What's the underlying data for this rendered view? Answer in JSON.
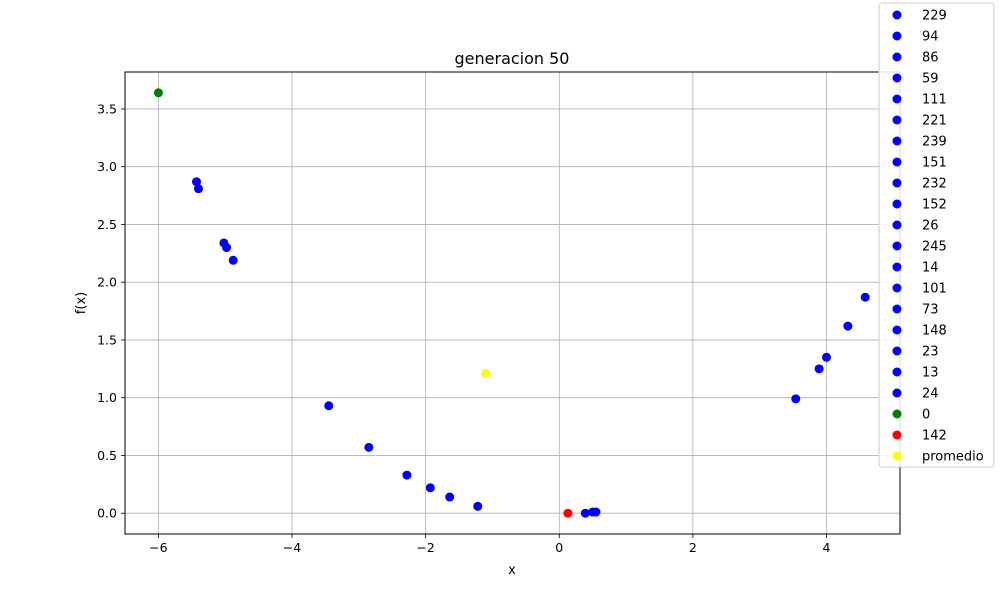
{
  "chart_data": {
    "type": "scatter",
    "title": "generacion 50",
    "xlabel": "x",
    "ylabel": "f(x)",
    "xlim": [
      -6.5,
      5.1
    ],
    "ylim": [
      -0.18,
      3.82
    ],
    "xticks": [
      -6,
      -4,
      -2,
      0,
      2,
      4
    ],
    "xtick_labels": [
      "−6",
      "−4",
      "−2",
      "0",
      "2",
      "4"
    ],
    "yticks": [
      0.0,
      0.5,
      1.0,
      1.5,
      2.0,
      2.5,
      3.0,
      3.5
    ],
    "ytick_labels": [
      "0.0",
      "0.5",
      "1.0",
      "1.5",
      "2.0",
      "2.5",
      "3.0",
      "3.5"
    ],
    "grid": true,
    "legend_position": "outside-top-right",
    "series": [
      {
        "name": "229",
        "color": "#0000ff",
        "points": [
          {
            "x": -5.43,
            "y": 2.87
          }
        ]
      },
      {
        "name": "94",
        "color": "#0000ff",
        "points": [
          {
            "x": -5.4,
            "y": 2.81
          }
        ]
      },
      {
        "name": "86",
        "color": "#0000ff",
        "points": [
          {
            "x": -5.02,
            "y": 2.34
          }
        ]
      },
      {
        "name": "59",
        "color": "#0000ff",
        "points": [
          {
            "x": -4.98,
            "y": 2.3
          }
        ]
      },
      {
        "name": "111",
        "color": "#0000ff",
        "points": [
          {
            "x": -4.88,
            "y": 2.19
          }
        ]
      },
      {
        "name": "221",
        "color": "#0000ff",
        "points": [
          {
            "x": -3.45,
            "y": 0.93
          }
        ]
      },
      {
        "name": "239",
        "color": "#0000ff",
        "points": [
          {
            "x": -2.85,
            "y": 0.57
          }
        ]
      },
      {
        "name": "151",
        "color": "#0000ff",
        "points": [
          {
            "x": -2.28,
            "y": 0.33
          }
        ]
      },
      {
        "name": "232",
        "color": "#0000ff",
        "points": [
          {
            "x": -1.93,
            "y": 0.22
          }
        ]
      },
      {
        "name": "152",
        "color": "#0000ff",
        "points": [
          {
            "x": -1.64,
            "y": 0.14
          }
        ]
      },
      {
        "name": "26",
        "color": "#0000ff",
        "points": [
          {
            "x": -1.22,
            "y": 0.06
          }
        ]
      },
      {
        "name": "245",
        "color": "#0000ff",
        "points": [
          {
            "x": 0.39,
            "y": 0.0
          }
        ]
      },
      {
        "name": "14",
        "color": "#0000ff",
        "points": [
          {
            "x": 0.5,
            "y": 0.01
          }
        ]
      },
      {
        "name": "101",
        "color": "#0000ff",
        "points": [
          {
            "x": 0.55,
            "y": 0.01
          }
        ]
      },
      {
        "name": "73",
        "color": "#0000ff",
        "points": [
          {
            "x": 3.54,
            "y": 0.99
          }
        ]
      },
      {
        "name": "148",
        "color": "#0000ff",
        "points": [
          {
            "x": 3.89,
            "y": 1.25
          }
        ]
      },
      {
        "name": "23",
        "color": "#0000ff",
        "points": [
          {
            "x": 4.0,
            "y": 1.35
          }
        ]
      },
      {
        "name": "13",
        "color": "#0000ff",
        "points": [
          {
            "x": 4.32,
            "y": 1.62
          }
        ]
      },
      {
        "name": "24",
        "color": "#0000ff",
        "points": [
          {
            "x": 4.58,
            "y": 1.87
          }
        ]
      },
      {
        "name": "0",
        "color": "#008000",
        "points": [
          {
            "x": -6.0,
            "y": 3.64
          }
        ]
      },
      {
        "name": "142",
        "color": "#ff0000",
        "points": [
          {
            "x": 0.13,
            "y": 0.0
          }
        ]
      },
      {
        "name": "promedio",
        "color": "#ffff00",
        "points": [
          {
            "x": -1.1,
            "y": 1.21
          }
        ]
      }
    ]
  }
}
